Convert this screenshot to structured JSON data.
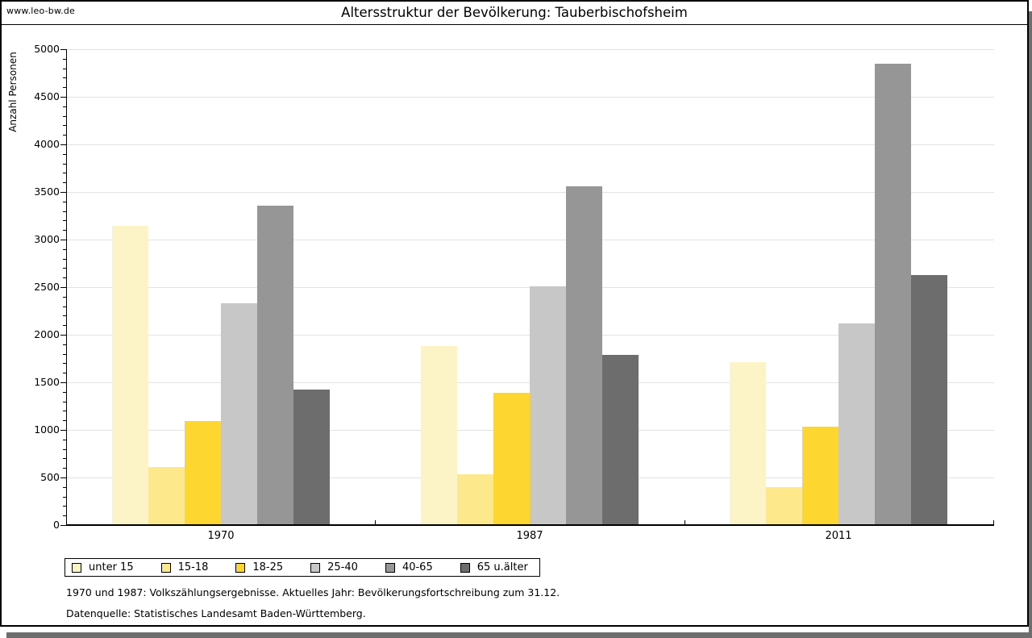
{
  "window": {
    "watermark": "www.leo-bw.de",
    "shadow_color": "#6E6E6E",
    "background": "#FFFFFF",
    "border_color": "#000000"
  },
  "header": {
    "title": "Altersstruktur der Bevölkerung: Tauberbischofsheim"
  },
  "footnotes": {
    "line1": "1970 und 1987: Volkszählungsergebnisse. Aktuelles Jahr: Bevölkerungsfortschreibung zum 31.12.",
    "line2": "Datenquelle: Statistisches Landesamt Baden-Württemberg."
  },
  "chart_data": {
    "type": "bar",
    "title": "Altersstruktur der Bevölkerung: Tauberbischofsheim",
    "xlabel": "",
    "ylabel": "Anzahl Personen",
    "categories": [
      "1970",
      "1987",
      "2011"
    ],
    "series": [
      {
        "name": "unter 15",
        "color": "#FCF4C7",
        "values": [
          3140,
          1880,
          1710
        ]
      },
      {
        "name": "15-18",
        "color": "#FDE98C",
        "values": [
          610,
          530,
          400
        ]
      },
      {
        "name": "18-25",
        "color": "#FDD62F",
        "values": [
          1090,
          1390,
          1030
        ]
      },
      {
        "name": "25-40",
        "color": "#C7C7C7",
        "values": [
          2330,
          2510,
          2120
        ]
      },
      {
        "name": "40-65",
        "color": "#969696",
        "values": [
          3360,
          3560,
          4850
        ]
      },
      {
        "name": "65 u.älter",
        "color": "#6D6D6D",
        "values": [
          1420,
          1790,
          2630
        ]
      }
    ],
    "ylim": [
      0,
      5000
    ],
    "ytick_step": 500,
    "minor_tick_step": 100,
    "grid": true,
    "gridline_color": "#E3E3E3",
    "legend_position": "bottom"
  }
}
